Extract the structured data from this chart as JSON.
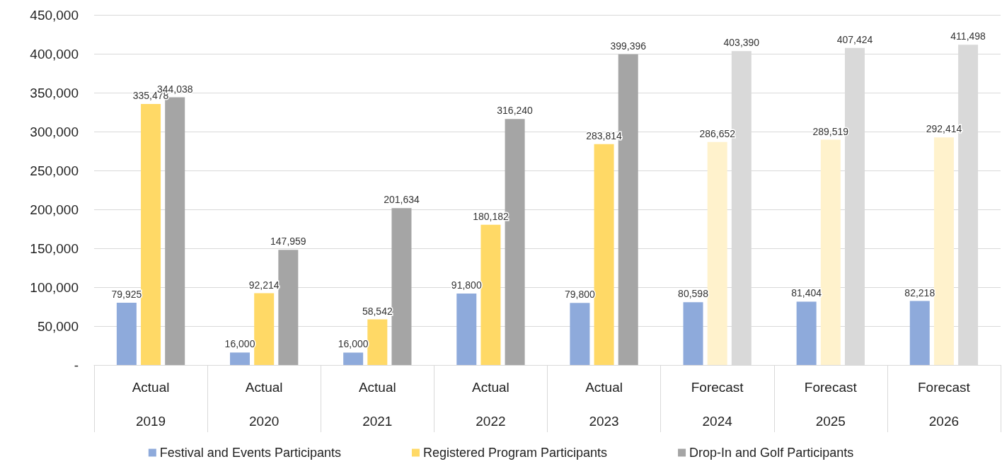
{
  "chart_data": {
    "type": "bar",
    "categories": [
      "Actual\n2019",
      "Actual\n2020",
      "Actual\n2021",
      "Actual\n2022",
      "Actual\n2023",
      "Forecast\n2024",
      "Forecast\n2025",
      "Forecast\n2026"
    ],
    "series": [
      {
        "name": "Festival and Events Participants",
        "color": "#8eaadb",
        "colors": [
          "#8eaadb",
          "#8eaadb",
          "#8eaadb",
          "#8eaadb",
          "#8eaadb",
          "#8eaadb",
          "#8eaadb",
          "#8eaadb"
        ],
        "values": [
          79925,
          16000,
          16000,
          91800,
          79800,
          80598,
          81404,
          82218
        ],
        "value_labels": [
          "79,925",
          "16,000",
          "16,000",
          "91,800",
          "79,800",
          "80,598",
          "81,404",
          "82,218"
        ]
      },
      {
        "name": "Registered Program Participants",
        "color": "#ffd966",
        "colors": [
          "#ffd966",
          "#ffd966",
          "#ffd966",
          "#ffd966",
          "#ffd966",
          "#fff2cc",
          "#fff2cc",
          "#fff2cc"
        ],
        "values": [
          335478,
          92214,
          58542,
          180182,
          283814,
          286652,
          289519,
          292414
        ],
        "value_labels": [
          "335,478",
          "92,214",
          "58,542",
          "180,182",
          "283,814",
          "286,652",
          "289,519",
          "292,414"
        ]
      },
      {
        "name": "Drop-In and Golf Participants",
        "color": "#a5a5a5",
        "colors": [
          "#a5a5a5",
          "#a5a5a5",
          "#a5a5a5",
          "#a5a5a5",
          "#a5a5a5",
          "#d9d9d9",
          "#d9d9d9",
          "#d9d9d9"
        ],
        "values": [
          344038,
          147959,
          201634,
          316240,
          399396,
          403390,
          407424,
          411498
        ],
        "value_labels": [
          "344,038",
          "147,959",
          "201,634",
          "316,240",
          "399,396",
          "403,390",
          "407,424",
          "411,498"
        ]
      }
    ],
    "ylim": [
      0,
      450000
    ],
    "yticks": [
      {
        "value": 0,
        "label": "-"
      },
      {
        "value": 50000,
        "label": "50,000"
      },
      {
        "value": 100000,
        "label": "100,000"
      },
      {
        "value": 150000,
        "label": "150,000"
      },
      {
        "value": 200000,
        "label": "200,000"
      },
      {
        "value": 250000,
        "label": "250,000"
      },
      {
        "value": 300000,
        "label": "300,000"
      },
      {
        "value": 350000,
        "label": "350,000"
      },
      {
        "value": 400000,
        "label": "400,000"
      },
      {
        "value": 450000,
        "label": "450,000"
      }
    ],
    "grid": "y",
    "legend": "bottom"
  }
}
